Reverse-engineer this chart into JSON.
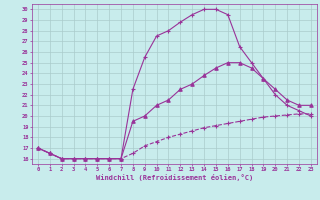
{
  "xlabel": "Windchill (Refroidissement éolien,°C)",
  "xlim": [
    -0.5,
    23.5
  ],
  "ylim": [
    15.5,
    30.5
  ],
  "bg_color": "#c8ecec",
  "line_color": "#993399",
  "grid_color": "#aacccc",
  "curve1_x": [
    0,
    1,
    2,
    3,
    4,
    5,
    6,
    7,
    8,
    9,
    10,
    11,
    12,
    13,
    14,
    15,
    16,
    17,
    18,
    19,
    20,
    21,
    22,
    23
  ],
  "curve1_y": [
    17.0,
    16.5,
    16.0,
    16.0,
    16.0,
    16.0,
    16.0,
    16.0,
    22.5,
    25.5,
    27.5,
    28.0,
    28.8,
    29.5,
    30.0,
    30.0,
    29.5,
    26.5,
    25.0,
    23.5,
    22.0,
    21.0,
    20.5,
    20.0
  ],
  "curve2_x": [
    0,
    1,
    2,
    3,
    4,
    5,
    6,
    7,
    8,
    9,
    10,
    11,
    12,
    13,
    14,
    15,
    16,
    17,
    18,
    19,
    20,
    21,
    22,
    23
  ],
  "curve2_y": [
    17.0,
    16.5,
    16.0,
    16.0,
    16.0,
    16.0,
    16.0,
    16.0,
    19.5,
    20.0,
    21.0,
    21.5,
    22.5,
    23.0,
    23.8,
    24.5,
    25.0,
    25.0,
    24.5,
    23.5,
    22.5,
    21.5,
    21.0,
    21.0
  ],
  "curve3_x": [
    0,
    1,
    2,
    3,
    4,
    5,
    6,
    7,
    8,
    9,
    10,
    11,
    12,
    13,
    14,
    15,
    16,
    17,
    18,
    19,
    20,
    21,
    22,
    23
  ],
  "curve3_y": [
    17.0,
    16.5,
    16.0,
    16.0,
    16.0,
    16.0,
    16.0,
    16.0,
    16.5,
    17.2,
    17.6,
    18.0,
    18.3,
    18.6,
    18.9,
    19.1,
    19.3,
    19.5,
    19.7,
    19.9,
    20.0,
    20.1,
    20.2,
    20.2
  ],
  "ytick_values": [
    16,
    17,
    18,
    19,
    20,
    21,
    22,
    23,
    24,
    25,
    26,
    27,
    28,
    29,
    30
  ]
}
